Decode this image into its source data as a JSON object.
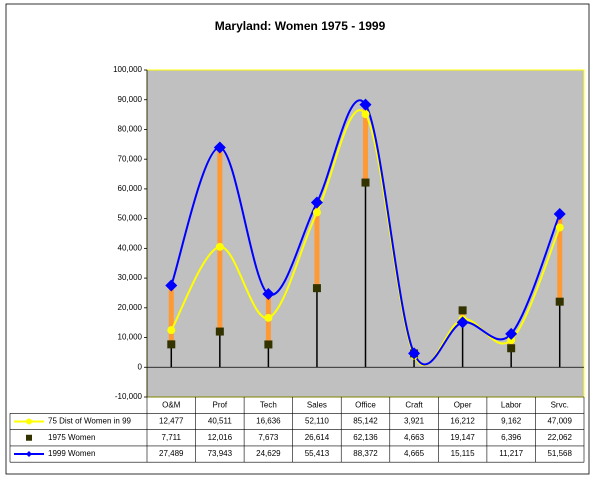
{
  "chart_data": {
    "type": "line",
    "title": "Maryland: Women 1975 - 1999",
    "categories": [
      "O&M",
      "Prof",
      "Tech",
      "Sales",
      "Office",
      "Craft",
      "Oper",
      "Labor",
      "Srvc."
    ],
    "series": [
      {
        "name": "75 Dist of Women in 99",
        "color": "#ffff00",
        "marker": "circle",
        "values": [
          12477,
          40511,
          16636,
          52110,
          85142,
          3921,
          16212,
          9162,
          47009
        ],
        "value_labels": [
          "12,477",
          "40,511",
          "16,636",
          "52,110",
          "85,142",
          "3,921",
          "16,212",
          "9,162",
          "47,009"
        ]
      },
      {
        "name": "1975 Women",
        "color": "#333300",
        "marker": "square",
        "values": [
          7711,
          12016,
          7673,
          26614,
          62136,
          4663,
          19147,
          6396,
          22062
        ],
        "value_labels": [
          "7,711",
          "12,016",
          "7,673",
          "26,614",
          "62,136",
          "4,663",
          "19,147",
          "6,396",
          "22,062"
        ]
      },
      {
        "name": "1999 Women",
        "color": "#0000ff",
        "marker": "diamond",
        "values": [
          27489,
          73943,
          24629,
          55413,
          88372,
          4665,
          15115,
          11217,
          51568
        ],
        "value_labels": [
          "27,489",
          "73,943",
          "24,629",
          "55,413",
          "88,372",
          "4,665",
          "15,115",
          "11,217",
          "51,568"
        ]
      }
    ],
    "updown_color": "#ff9933",
    "ylim": [
      -10000,
      100000
    ],
    "yticks": [
      {
        "value": -10000,
        "label": "-10,000"
      },
      0,
      {
        "value": 10000,
        "label": "10,000"
      },
      {
        "value": 20000,
        "label": "20,000"
      },
      {
        "value": 30000,
        "label": "30,000"
      },
      {
        "value": 40000,
        "label": "40,000"
      },
      {
        "value": 50000,
        "label": "50,000"
      },
      {
        "value": 60000,
        "label": "60,000"
      },
      {
        "value": 70000,
        "label": "70,000"
      },
      {
        "value": 80000,
        "label": "80,000"
      },
      {
        "value": 90000,
        "label": "90,000"
      },
      {
        "value": 100000,
        "label": "100,000"
      }
    ],
    "grid": false
  }
}
